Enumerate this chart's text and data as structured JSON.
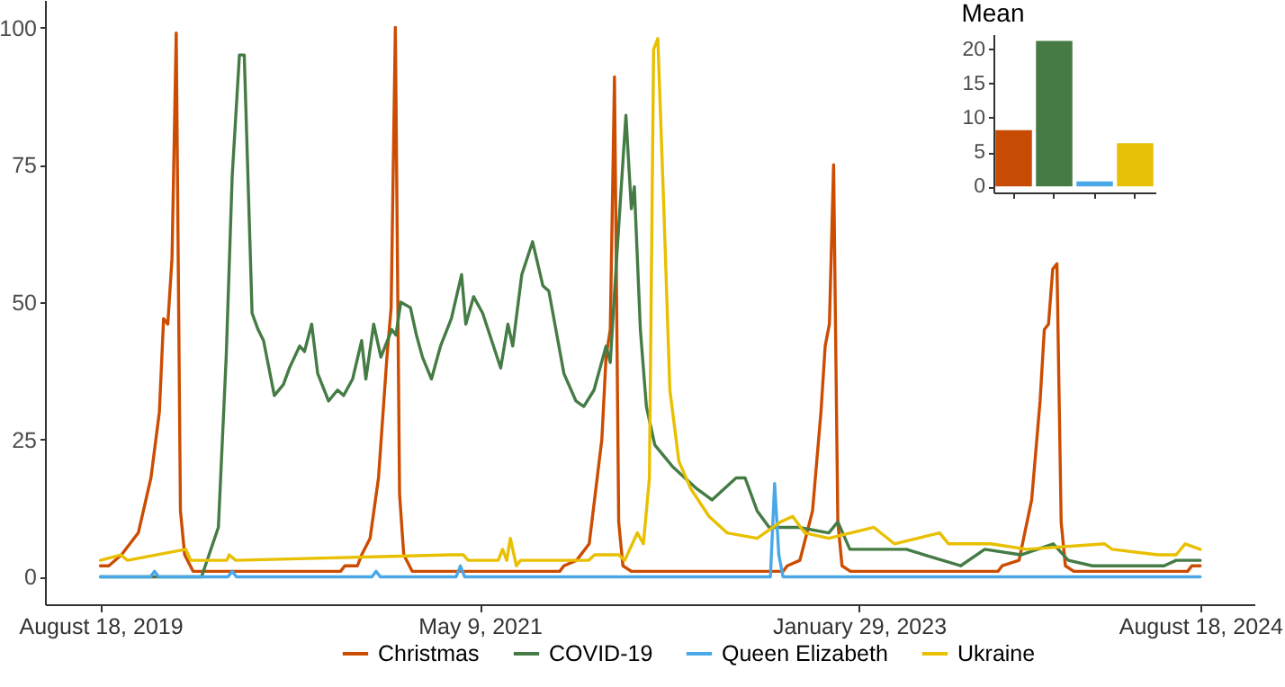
{
  "chart_data": [
    {
      "type": "line",
      "line_style": "solid",
      "grid": false,
      "legend": "bottom",
      "xlim": [
        "2019-05-18",
        "2024-11-16"
      ],
      "xticks": [
        {
          "value": "2019-08-18",
          "label": "August 18, 2019"
        },
        {
          "value": "2021-05-09",
          "label": "May 9, 2021"
        },
        {
          "value": "2023-01-29",
          "label": "January 29, 2023"
        },
        {
          "value": "2024-08-18",
          "label": "August 18, 2024"
        }
      ],
      "ylim": [
        -5,
        105
      ],
      "yticks": [
        0,
        25,
        50,
        75,
        100
      ],
      "series": [
        {
          "name": "Christmas",
          "color": "#cc4c02",
          "x": [
            "2019-08-18",
            "2019-09-01",
            "2019-09-22",
            "2019-10-20",
            "2019-11-10",
            "2019-11-24",
            "2019-12-01",
            "2019-12-08",
            "2019-12-15",
            "2019-12-22",
            "2019-12-29",
            "2020-01-05",
            "2020-01-19",
            "2020-09-20",
            "2020-09-27",
            "2020-10-18",
            "2020-10-25",
            "2020-11-08",
            "2020-11-22",
            "2020-12-06",
            "2020-12-13",
            "2020-12-20",
            "2020-12-27",
            "2021-01-03",
            "2021-01-17",
            "2021-09-19",
            "2021-09-26",
            "2021-10-17",
            "2021-11-07",
            "2021-11-28",
            "2021-12-05",
            "2021-12-12",
            "2021-12-19",
            "2021-12-26",
            "2022-01-02",
            "2022-01-16",
            "2022-09-25",
            "2022-10-02",
            "2022-10-23",
            "2022-11-13",
            "2022-11-27",
            "2022-12-04",
            "2022-12-11",
            "2022-12-18",
            "2022-12-25",
            "2023-01-01",
            "2023-01-15",
            "2023-09-17",
            "2023-09-24",
            "2023-10-22",
            "2023-11-12",
            "2023-11-26",
            "2023-12-03",
            "2023-12-10",
            "2023-12-17",
            "2023-12-24",
            "2023-12-31",
            "2024-01-07",
            "2024-01-21",
            "2024-07-28",
            "2024-08-04",
            "2024-08-18"
          ],
          "values": [
            2,
            2,
            4,
            8,
            18,
            30,
            47,
            46,
            58,
            99,
            12,
            4,
            1,
            1,
            2,
            2,
            4,
            7,
            18,
            40,
            49,
            100,
            15,
            4,
            1,
            1,
            2,
            3,
            6,
            25,
            40,
            45,
            91,
            10,
            2,
            1,
            1,
            2,
            3,
            12,
            30,
            42,
            46,
            75,
            10,
            2,
            1,
            1,
            2,
            3,
            14,
            32,
            45,
            46,
            56,
            57,
            10,
            2,
            1,
            1,
            2,
            2
          ]
        },
        {
          "name": "COVID-19",
          "color": "#457b45",
          "x": [
            "2019-08-18",
            "2020-02-02",
            "2020-03-01",
            "2020-03-14",
            "2020-03-24",
            "2020-04-05",
            "2020-04-13",
            "2020-04-26",
            "2020-05-06",
            "2020-05-15",
            "2020-06-02",
            "2020-06-17",
            "2020-06-27",
            "2020-07-14",
            "2020-07-22",
            "2020-08-03",
            "2020-08-13",
            "2020-08-31",
            "2020-09-15",
            "2020-09-25",
            "2020-10-10",
            "2020-10-25",
            "2020-11-01",
            "2020-11-14",
            "2020-11-26",
            "2020-12-14",
            "2020-12-21",
            "2020-12-29",
            "2021-01-14",
            "2021-01-24",
            "2021-02-03",
            "2021-02-18",
            "2021-03-05",
            "2021-03-23",
            "2021-04-09",
            "2021-04-16",
            "2021-04-29",
            "2021-05-14",
            "2021-05-29",
            "2021-06-13",
            "2021-06-25",
            "2021-07-03",
            "2021-07-18",
            "2021-08-05",
            "2021-08-22",
            "2021-09-01",
            "2021-09-16",
            "2021-09-26",
            "2021-10-16",
            "2021-10-29",
            "2021-11-15",
            "2021-12-05",
            "2021-12-12",
            "2021-12-22",
            "2022-01-07",
            "2022-01-16",
            "2022-01-21",
            "2022-01-31",
            "2022-02-10",
            "2022-02-24",
            "2022-03-11",
            "2022-03-26",
            "2022-04-15",
            "2022-05-05",
            "2022-05-30",
            "2022-06-19",
            "2022-07-09",
            "2022-07-24",
            "2022-08-13",
            "2022-09-02",
            "2022-10-21",
            "2022-12-10",
            "2022-12-25",
            "2023-01-14",
            "2023-03-10",
            "2023-04-18",
            "2023-05-18",
            "2023-07-17",
            "2023-08-26",
            "2023-10-25",
            "2023-12-18",
            "2024-01-12",
            "2024-02-21",
            "2024-06-19",
            "2024-07-09",
            "2024-08-18"
          ],
          "values": [
            0,
            0,
            9,
            40,
            73,
            95,
            95,
            48,
            45,
            43,
            33,
            35,
            38,
            42,
            41,
            46,
            37,
            32,
            34,
            33,
            36,
            43,
            36,
            46,
            40,
            45,
            44,
            50,
            49,
            44,
            40,
            36,
            42,
            47,
            55,
            46,
            51,
            48,
            43,
            38,
            46,
            42,
            55,
            61,
            53,
            52,
            43,
            37,
            32,
            31,
            34,
            42,
            39,
            57,
            84,
            67,
            71,
            45,
            31,
            24,
            22,
            20,
            18,
            16,
            14,
            16,
            18,
            18,
            12,
            9,
            9,
            8,
            10,
            5,
            5,
            5,
            4,
            2,
            5,
            4,
            6,
            3,
            2,
            2,
            3,
            3
          ]
        },
        {
          "name": "Queen Elizabeth",
          "color": "#4aa8e8",
          "x": [
            "2019-08-18",
            "2019-11-09",
            "2019-11-16",
            "2019-11-23",
            "2020-03-17",
            "2020-03-24",
            "2020-03-31",
            "2020-11-11",
            "2020-11-18",
            "2020-11-25",
            "2021-03-31",
            "2021-04-07",
            "2021-04-14",
            "2022-09-04",
            "2022-09-11",
            "2022-09-18",
            "2022-09-25",
            "2024-08-18"
          ],
          "values": [
            0,
            0,
            1,
            0,
            0,
            1,
            0,
            0,
            1,
            0,
            0,
            2,
            0,
            0,
            17,
            4,
            0,
            0
          ]
        },
        {
          "name": "Ukraine",
          "color": "#e8c000",
          "x": [
            "2019-08-18",
            "2019-09-21",
            "2019-10-02",
            "2020-01-07",
            "2020-01-15",
            "2020-03-15",
            "2020-03-19",
            "2020-03-30",
            "2021-03-23",
            "2021-04-12",
            "2021-04-20",
            "2021-06-09",
            "2021-06-16",
            "2021-06-23",
            "2021-06-29",
            "2021-07-09",
            "2021-07-16",
            "2021-11-06",
            "2021-11-16",
            "2021-12-26",
            "2022-01-05",
            "2022-01-26",
            "2022-02-05",
            "2022-02-15",
            "2022-02-22",
            "2022-03-01",
            "2022-03-11",
            "2022-03-21",
            "2022-04-05",
            "2022-04-25",
            "2022-05-25",
            "2022-06-24",
            "2022-08-13",
            "2022-09-21",
            "2022-10-11",
            "2022-10-31",
            "2022-12-10",
            "2023-02-23",
            "2023-03-29",
            "2023-06-12",
            "2023-06-27",
            "2023-09-05",
            "2023-11-04",
            "2024-03-12",
            "2024-03-25",
            "2024-06-09",
            "2024-07-09",
            "2024-07-24",
            "2024-08-18"
          ],
          "values": [
            3,
            4,
            3,
            5,
            3,
            3,
            4,
            3,
            4,
            4,
            3,
            3,
            5,
            3,
            7,
            2,
            3,
            3,
            4,
            4,
            3,
            8,
            6,
            18,
            96,
            98,
            67,
            34,
            21,
            16,
            11,
            8,
            7,
            10,
            11,
            8,
            7,
            9,
            6,
            8,
            6,
            6,
            5,
            6,
            5,
            4,
            4,
            6,
            5
          ]
        }
      ]
    },
    {
      "type": "bar",
      "title": "Mean",
      "categories": [
        null,
        null,
        null,
        null
      ],
      "values": [
        8.2,
        21.2,
        0.7,
        6.3
      ],
      "colors": [
        "#c84b04",
        "#467b45",
        "#4aa8e8",
        "#e8c007"
      ],
      "ylim": [
        -0.9,
        22.2
      ],
      "yticks": [
        0,
        5,
        10,
        15,
        20
      ],
      "tick_labels": "y"
    }
  ]
}
